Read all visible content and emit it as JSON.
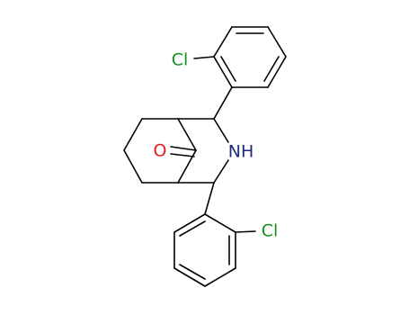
{
  "atoms": [
    {
      "label": "Cl"
    },
    {
      "label": "O"
    },
    {
      "label": "NH"
    },
    {
      "label": "Cl"
    }
  ]
}
